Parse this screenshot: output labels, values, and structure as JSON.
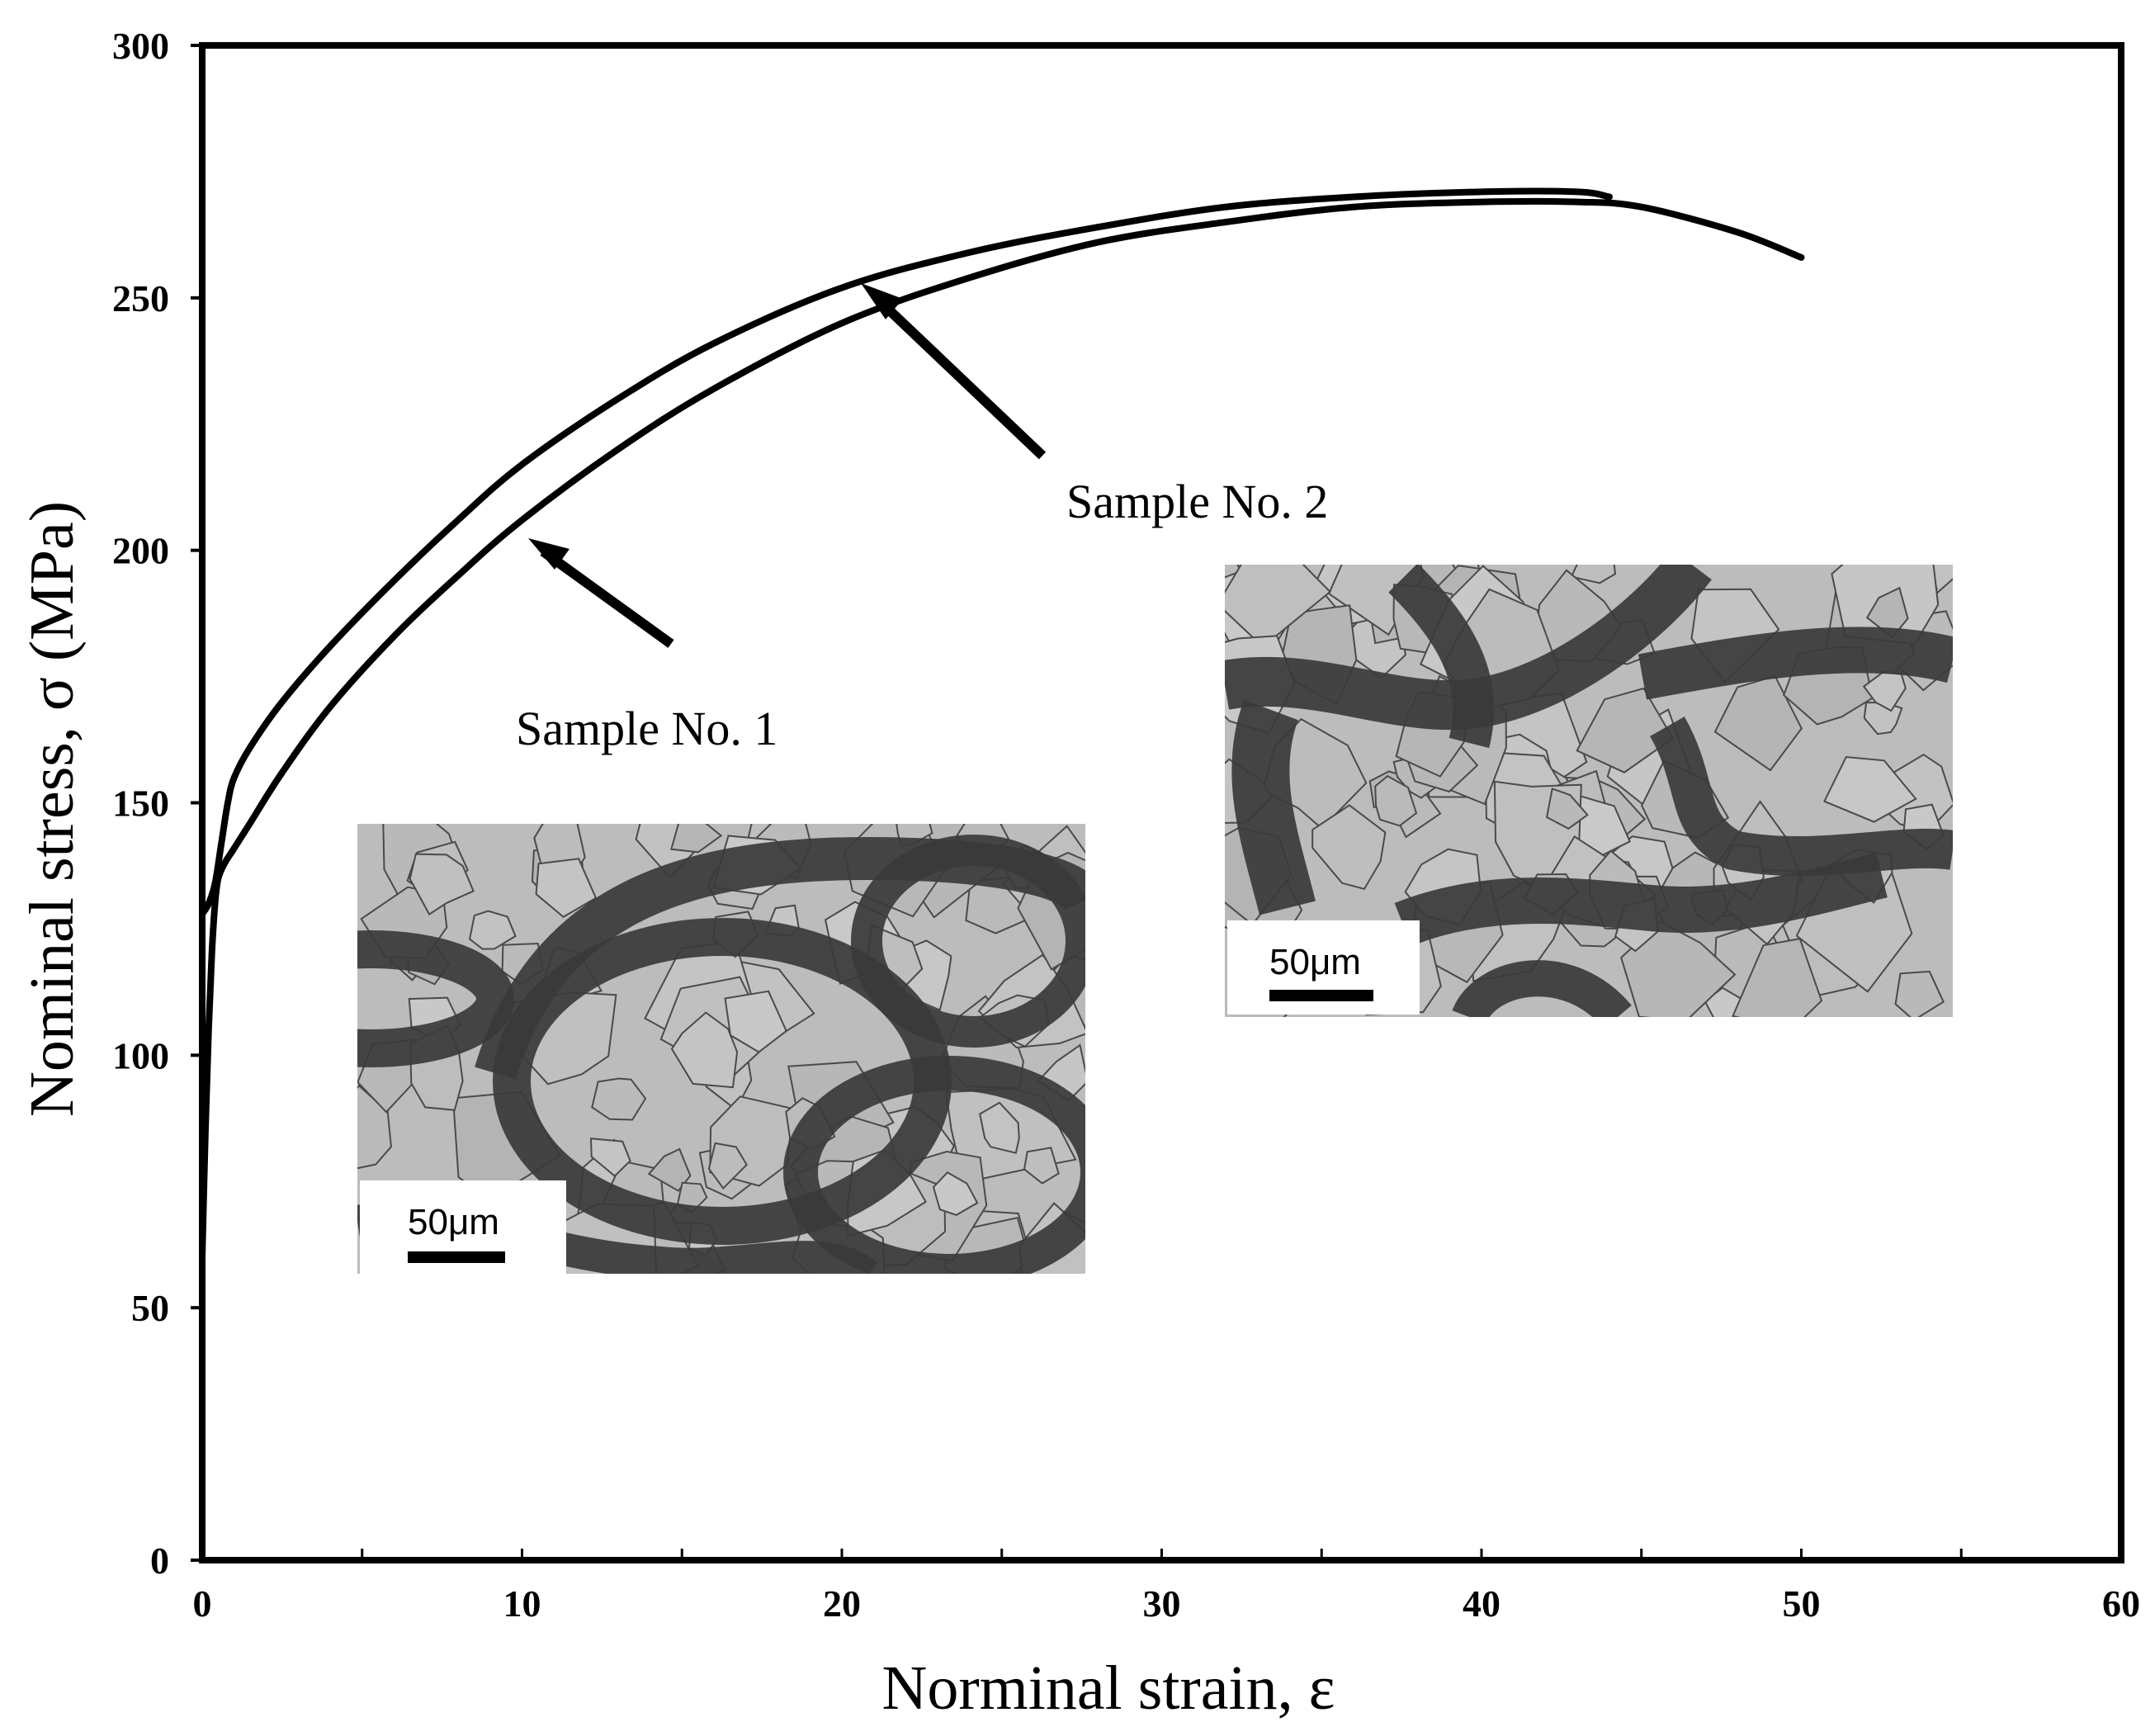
{
  "chart_data": {
    "type": "line",
    "title": "",
    "xlabel": "Norminal strain, ε",
    "ylabel": "Nominal stress, σ (MPa)",
    "xlim": [
      0,
      60
    ],
    "ylim": [
      0,
      300
    ],
    "x_ticks": [
      0,
      10,
      20,
      30,
      40,
      50,
      60
    ],
    "y_ticks": [
      0,
      50,
      100,
      150,
      200,
      250,
      300
    ],
    "x_minor_step": 5,
    "grid": false,
    "legend": "none",
    "series": [
      {
        "name": "Sample No. 1",
        "x": [
          0,
          0.1,
          0.2,
          0.3,
          0.4,
          0.5,
          0.7,
          1.0,
          1.5,
          2.5,
          4,
          6,
          8,
          10,
          13,
          16,
          20,
          24,
          28,
          32,
          36,
          40,
          43,
          45,
          48,
          50
        ],
        "y": [
          60,
          85,
          105,
          120,
          130,
          135,
          138,
          141,
          146,
          156,
          169,
          183,
          195,
          206,
          220,
          232,
          245,
          254,
          261,
          265,
          268,
          269,
          269,
          268,
          263,
          258
        ]
      },
      {
        "name": "Sample No. 2",
        "x": [
          0,
          0.2,
          0.4,
          0.6,
          0.8,
          1.0,
          1.5,
          2.5,
          4,
          6,
          8,
          10,
          13,
          16,
          20,
          24,
          28,
          32,
          36,
          40,
          43,
          44
        ],
        "y": [
          128,
          130,
          134,
          142,
          150,
          155,
          161,
          170,
          181,
          194,
          206,
          217,
          230,
          241,
          252,
          259,
          264,
          268,
          270,
          271,
          271,
          270
        ]
      }
    ],
    "annotations": [
      {
        "text": "Sample No. 1",
        "target_series": 0,
        "target": [
          10,
          203
        ]
      },
      {
        "text": "Sample No. 2",
        "target_series": 1,
        "target": [
          20.7,
          252
        ]
      }
    ],
    "insets": [
      {
        "scale_bar": "50μm",
        "for": "Sample No. 1"
      },
      {
        "scale_bar": "50μm",
        "for": "Sample No. 2"
      }
    ],
    "colors": {
      "line": "#000000",
      "grain": "#bcbcbc",
      "boundary": "#4a4a4a"
    }
  }
}
